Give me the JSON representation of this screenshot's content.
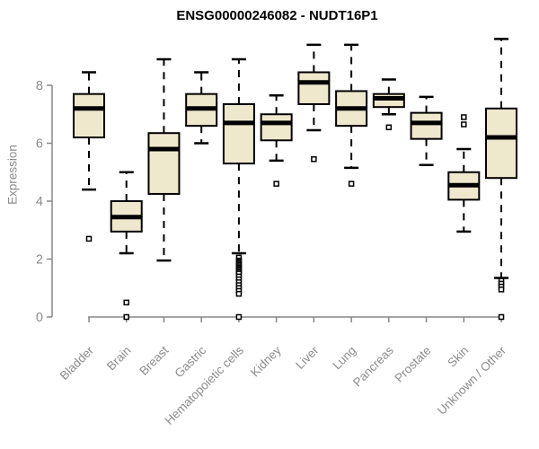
{
  "chart_data": {
    "type": "boxplot",
    "title": "ENSG00000246082 - NUDT16P1",
    "ylabel": "Expression",
    "xlabel": "",
    "ylim": [
      0,
      8
    ],
    "yticks": [
      0,
      2,
      4,
      6,
      8
    ],
    "grid": false,
    "legend": "none",
    "colors": {
      "box_fill": "#EEE8CD",
      "box_stroke": "#000000",
      "median": "#000000",
      "whisker": "#000000",
      "axis": "#878787",
      "tick_label": "#8c8c8c",
      "title": "#000000",
      "background": "#ffffff"
    },
    "categories": [
      "Bladder",
      "Brain",
      "Breast",
      "Gastric",
      "Hematopoietic cells",
      "Kidney",
      "Liver",
      "Lung",
      "Pancreas",
      "Prostate",
      "Skin",
      "Unknown / Other"
    ],
    "series": [
      {
        "name": "Bladder",
        "low": 4.4,
        "q1": 6.2,
        "median": 7.2,
        "q3": 7.7,
        "high": 8.45,
        "outliers": [
          2.7
        ]
      },
      {
        "name": "Brain",
        "low": 2.2,
        "q1": 2.95,
        "median": 3.45,
        "q3": 4.0,
        "high": 5.0,
        "outliers": [
          0.5,
          0
        ]
      },
      {
        "name": "Breast",
        "low": 1.95,
        "q1": 4.25,
        "median": 5.8,
        "q3": 6.35,
        "high": 8.9,
        "outliers": []
      },
      {
        "name": "Gastric",
        "low": 6.0,
        "q1": 6.6,
        "median": 7.2,
        "q3": 7.7,
        "high": 8.45,
        "outliers": []
      },
      {
        "name": "Hematopoietic cells",
        "low": 2.2,
        "q1": 5.3,
        "median": 6.7,
        "q3": 7.35,
        "high": 8.9,
        "outliers": [
          2.05,
          1.95,
          1.9,
          1.85,
          1.8,
          1.75,
          1.7,
          1.65,
          1.6,
          1.55,
          1.5,
          1.4,
          1.3,
          1.2,
          1.1,
          1.0,
          0.9,
          0.8,
          0
        ]
      },
      {
        "name": "Kidney",
        "low": 5.4,
        "q1": 6.1,
        "median": 6.7,
        "q3": 7.0,
        "high": 7.65,
        "outliers": [
          4.6
        ]
      },
      {
        "name": "Liver",
        "low": 6.45,
        "q1": 7.35,
        "median": 8.1,
        "q3": 8.45,
        "high": 9.4,
        "outliers": [
          5.45
        ]
      },
      {
        "name": "Lung",
        "low": 5.15,
        "q1": 6.6,
        "median": 7.2,
        "q3": 7.8,
        "high": 9.4,
        "outliers": [
          4.6
        ]
      },
      {
        "name": "Pancreas",
        "low": 7.0,
        "q1": 7.25,
        "median": 7.55,
        "q3": 7.7,
        "high": 8.2,
        "outliers": [
          6.55
        ]
      },
      {
        "name": "Prostate",
        "low": 5.25,
        "q1": 6.15,
        "median": 6.7,
        "q3": 7.05,
        "high": 7.6,
        "outliers": []
      },
      {
        "name": "Skin",
        "low": 2.95,
        "q1": 4.05,
        "median": 4.55,
        "q3": 5.0,
        "high": 5.8,
        "outliers": [
          6.9,
          6.65
        ]
      },
      {
        "name": "Unknown / Other",
        "low": 1.35,
        "q1": 4.8,
        "median": 6.2,
        "q3": 7.2,
        "high": 9.6,
        "outliers": [
          1.25,
          1.15,
          1.05,
          0.95,
          0
        ]
      }
    ]
  }
}
